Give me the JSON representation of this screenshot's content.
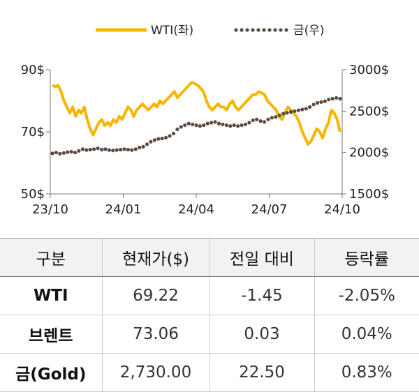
{
  "chart_data": {
    "type": "line",
    "x_ticks": [
      "23/10",
      "24/01",
      "24/04",
      "24/07",
      "24/10"
    ],
    "y_left_ticks": [
      "90$",
      "70$",
      "50$"
    ],
    "y_right_ticks": [
      "3000$",
      "2500$",
      "2000$",
      "1500$"
    ],
    "y_left_range": [
      50,
      90
    ],
    "y_right_range": [
      1500,
      3000
    ],
    "legend": {
      "position": "top"
    },
    "colors": {
      "wti": "#f7b500",
      "gold": "#5a4a3f"
    },
    "series": [
      {
        "name": "WTI(좌)",
        "axis": "left",
        "style": "solid",
        "values": [
          85,
          84.5,
          85,
          83,
          80,
          78,
          76,
          78,
          75,
          77,
          76,
          78,
          74,
          71,
          69,
          71,
          73,
          74,
          72,
          73,
          72,
          74,
          73,
          75,
          74,
          76,
          78,
          77,
          75,
          77,
          78,
          79,
          78,
          77,
          78,
          79,
          78,
          80,
          79,
          80,
          81,
          82,
          83,
          81,
          82,
          83,
          84,
          85,
          86,
          85.5,
          85,
          84,
          83,
          80,
          78,
          77,
          78,
          79,
          78,
          78,
          77,
          79,
          80,
          78,
          77,
          78,
          79,
          80,
          81,
          82,
          82,
          83,
          82.5,
          82,
          80,
          79,
          78,
          77,
          75,
          74,
          76,
          78,
          77,
          76,
          75,
          73,
          70,
          68,
          66,
          67,
          69,
          71,
          70,
          68,
          71,
          73,
          77,
          76,
          74,
          70
        ]
      },
      {
        "name": "금(우)",
        "axis": "right",
        "style": "dotted",
        "values": [
          1990,
          2000,
          1985,
          1995,
          2005,
          2010,
          2000,
          2020,
          2040,
          2030,
          2035,
          2040,
          2050,
          2035,
          2040,
          2030,
          2025,
          2030,
          2035,
          2040,
          2035,
          2030,
          2040,
          2060,
          2070,
          2100,
          2130,
          2150,
          2165,
          2170,
          2180,
          2200,
          2230,
          2280,
          2310,
          2330,
          2350,
          2340,
          2330,
          2320,
          2330,
          2350,
          2360,
          2370,
          2350,
          2340,
          2330,
          2320,
          2330,
          2320,
          2330,
          2340,
          2360,
          2390,
          2400,
          2380,
          2370,
          2400,
          2420,
          2430,
          2450,
          2470,
          2480,
          2490,
          2500,
          2510,
          2520,
          2530,
          2550,
          2580,
          2600,
          2610,
          2620,
          2640,
          2650,
          2660,
          2650
        ]
      }
    ]
  },
  "table": {
    "headers": [
      "구분",
      "현재가($)",
      "전일 대비",
      "등락률"
    ],
    "rows": [
      [
        "WTI",
        "69.22",
        "-1.45",
        "-2.05%"
      ],
      [
        "브렌트",
        "73.06",
        "0.03",
        "0.04%"
      ],
      [
        "금(Gold)",
        "2,730.00",
        "22.50",
        "0.83%"
      ]
    ]
  }
}
